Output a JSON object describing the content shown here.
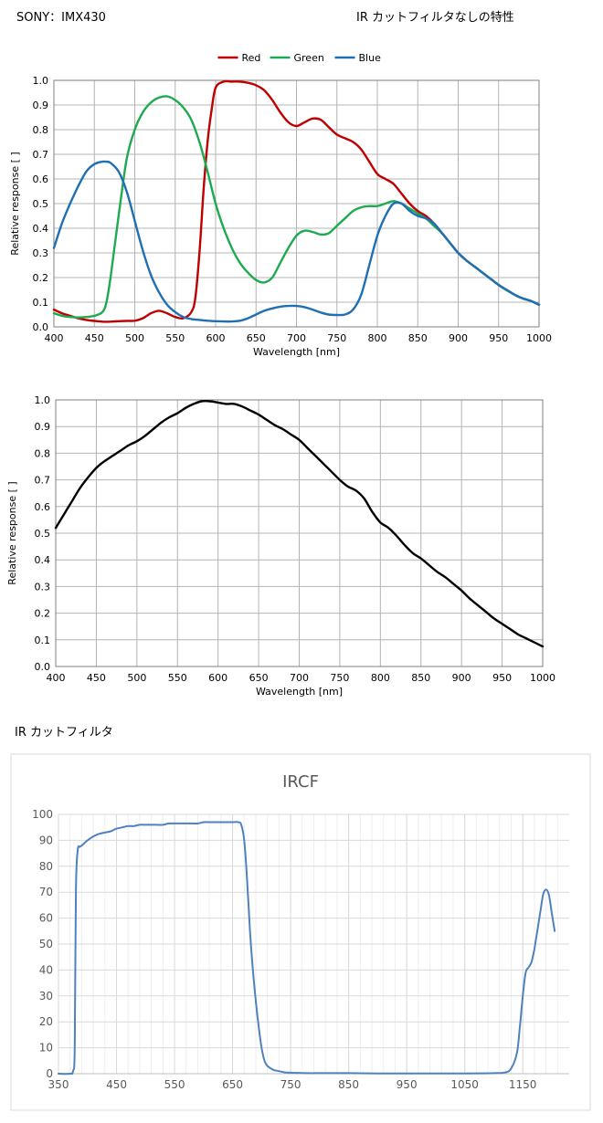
{
  "header": {
    "model": "SONY：IMX430",
    "title": "IR カットフィルタなしの特性",
    "ir_filter_label": "IR カットフィルタ"
  },
  "chart_data": [
    {
      "type": "line",
      "title": "",
      "xlabel": "Wavelength [nm]",
      "ylabel": "Relative response [ ]",
      "xlim": [
        400,
        1000
      ],
      "ylim": [
        0,
        1.0
      ],
      "xticks": [
        "400",
        "450",
        "500",
        "550",
        "600",
        "650",
        "700",
        "750",
        "800",
        "850",
        "900",
        "950",
        "1000"
      ],
      "yticks": [
        "0.0",
        "0.1",
        "0.2",
        "0.3",
        "0.4",
        "0.5",
        "0.6",
        "0.7",
        "0.8",
        "0.9",
        "1.0"
      ],
      "grid": true,
      "legend": "top-center",
      "series": [
        {
          "name": "Red",
          "color": "#c00000",
          "x": [
            400,
            410,
            420,
            430,
            440,
            450,
            460,
            470,
            480,
            490,
            500,
            510,
            520,
            530,
            540,
            550,
            560,
            570,
            575,
            580,
            585,
            590,
            595,
            600,
            610,
            620,
            630,
            640,
            650,
            660,
            670,
            680,
            690,
            700,
            710,
            720,
            730,
            740,
            750,
            760,
            770,
            780,
            790,
            800,
            810,
            820,
            830,
            840,
            850,
            860,
            870,
            880,
            890,
            900,
            910,
            920,
            930,
            940,
            950,
            960,
            970,
            980,
            990,
            1000
          ],
          "y": [
            0.07,
            0.055,
            0.045,
            0.035,
            0.028,
            0.024,
            0.021,
            0.021,
            0.023,
            0.024,
            0.025,
            0.035,
            0.055,
            0.065,
            0.055,
            0.04,
            0.035,
            0.06,
            0.12,
            0.3,
            0.55,
            0.75,
            0.88,
            0.97,
            0.995,
            0.995,
            0.995,
            0.99,
            0.98,
            0.96,
            0.92,
            0.87,
            0.83,
            0.815,
            0.83,
            0.845,
            0.84,
            0.81,
            0.78,
            0.765,
            0.75,
            0.72,
            0.67,
            0.62,
            0.6,
            0.58,
            0.54,
            0.5,
            0.47,
            0.45,
            0.42,
            0.38,
            0.34,
            0.3,
            0.27,
            0.245,
            0.22,
            0.195,
            0.17,
            0.15,
            0.13,
            0.115,
            0.105,
            0.09
          ]
        },
        {
          "name": "Green",
          "color": "#1eaa50",
          "x": [
            400,
            410,
            420,
            430,
            440,
            450,
            460,
            465,
            470,
            480,
            490,
            500,
            510,
            520,
            530,
            540,
            550,
            560,
            570,
            580,
            590,
            600,
            610,
            620,
            630,
            640,
            650,
            660,
            670,
            680,
            690,
            700,
            710,
            720,
            730,
            740,
            750,
            760,
            770,
            780,
            790,
            800,
            810,
            820,
            830,
            840,
            850,
            860,
            870,
            880,
            890,
            900,
            910,
            920,
            930,
            940,
            950,
            960,
            970,
            980,
            990,
            1000
          ],
          "y": [
            0.055,
            0.045,
            0.04,
            0.038,
            0.04,
            0.045,
            0.06,
            0.1,
            0.2,
            0.45,
            0.68,
            0.8,
            0.87,
            0.91,
            0.93,
            0.935,
            0.92,
            0.89,
            0.84,
            0.75,
            0.63,
            0.5,
            0.4,
            0.32,
            0.26,
            0.22,
            0.19,
            0.18,
            0.2,
            0.26,
            0.32,
            0.37,
            0.39,
            0.385,
            0.375,
            0.38,
            0.41,
            0.44,
            0.47,
            0.485,
            0.49,
            0.49,
            0.5,
            0.51,
            0.5,
            0.48,
            0.46,
            0.44,
            0.41,
            0.38,
            0.34,
            0.3,
            0.27,
            0.245,
            0.22,
            0.195,
            0.17,
            0.148,
            0.13,
            0.115,
            0.105,
            0.09
          ]
        },
        {
          "name": "Blue",
          "color": "#1f6fb4",
          "x": [
            400,
            410,
            420,
            430,
            440,
            450,
            460,
            465,
            470,
            480,
            490,
            500,
            510,
            520,
            530,
            540,
            550,
            560,
            570,
            580,
            590,
            600,
            610,
            620,
            630,
            640,
            650,
            660,
            670,
            680,
            690,
            700,
            710,
            720,
            730,
            740,
            750,
            760,
            770,
            780,
            790,
            800,
            810,
            820,
            830,
            840,
            850,
            860,
            870,
            880,
            890,
            900,
            910,
            920,
            930,
            940,
            950,
            960,
            970,
            980,
            990,
            1000
          ],
          "y": [
            0.32,
            0.42,
            0.5,
            0.57,
            0.63,
            0.66,
            0.67,
            0.67,
            0.665,
            0.63,
            0.55,
            0.43,
            0.31,
            0.21,
            0.14,
            0.09,
            0.06,
            0.04,
            0.032,
            0.028,
            0.025,
            0.023,
            0.022,
            0.022,
            0.025,
            0.035,
            0.05,
            0.065,
            0.075,
            0.082,
            0.085,
            0.085,
            0.08,
            0.07,
            0.058,
            0.05,
            0.048,
            0.05,
            0.07,
            0.13,
            0.25,
            0.37,
            0.45,
            0.5,
            0.5,
            0.47,
            0.45,
            0.44,
            0.42,
            0.38,
            0.34,
            0.3,
            0.27,
            0.245,
            0.22,
            0.195,
            0.17,
            0.15,
            0.13,
            0.115,
            0.105,
            0.09
          ]
        }
      ]
    },
    {
      "type": "line",
      "title": "",
      "xlabel": "Wavelength [nm]",
      "ylabel": "Relative response [ ]",
      "xlim": [
        400,
        1000
      ],
      "ylim": [
        0,
        1.0
      ],
      "xticks": [
        "400",
        "450",
        "500",
        "550",
        "600",
        "650",
        "700",
        "750",
        "800",
        "850",
        "900",
        "950",
        "1000"
      ],
      "yticks": [
        "0.0",
        "0.1",
        "0.2",
        "0.3",
        "0.4",
        "0.5",
        "0.6",
        "0.7",
        "0.8",
        "0.9",
        "1.0"
      ],
      "grid": true,
      "series": [
        {
          "name": "",
          "color": "#000000",
          "x": [
            400,
            410,
            420,
            430,
            440,
            450,
            460,
            470,
            480,
            490,
            500,
            510,
            520,
            530,
            540,
            550,
            560,
            570,
            580,
            590,
            600,
            610,
            620,
            630,
            640,
            650,
            660,
            670,
            680,
            690,
            700,
            710,
            720,
            730,
            740,
            750,
            760,
            770,
            780,
            790,
            800,
            810,
            820,
            830,
            840,
            850,
            860,
            870,
            880,
            890,
            900,
            910,
            920,
            930,
            940,
            950,
            960,
            970,
            980,
            990,
            1000
          ],
          "y": [
            0.52,
            0.57,
            0.62,
            0.67,
            0.71,
            0.745,
            0.77,
            0.79,
            0.81,
            0.83,
            0.845,
            0.865,
            0.89,
            0.915,
            0.935,
            0.95,
            0.97,
            0.985,
            0.995,
            0.995,
            0.99,
            0.985,
            0.985,
            0.975,
            0.96,
            0.945,
            0.925,
            0.905,
            0.89,
            0.87,
            0.85,
            0.82,
            0.79,
            0.76,
            0.73,
            0.7,
            0.675,
            0.66,
            0.63,
            0.58,
            0.54,
            0.52,
            0.49,
            0.455,
            0.425,
            0.405,
            0.38,
            0.355,
            0.335,
            0.31,
            0.285,
            0.255,
            0.23,
            0.205,
            0.18,
            0.16,
            0.14,
            0.12,
            0.105,
            0.09,
            0.075
          ]
        }
      ]
    },
    {
      "type": "line",
      "title": "IRCF",
      "xlabel": "",
      "ylabel": "",
      "xlim": [
        350,
        1230
      ],
      "ylim": [
        0,
        100
      ],
      "xticks": [
        "350",
        "450",
        "550",
        "650",
        "750",
        "850",
        "950",
        "1050",
        "1150"
      ],
      "yticks": [
        "0",
        "10",
        "20",
        "30",
        "40",
        "50",
        "60",
        "70",
        "80",
        "90",
        "100"
      ],
      "grid": true,
      "series": [
        {
          "name": "",
          "color": "#4f81bd",
          "x": [
            350,
            370,
            375,
            378,
            380,
            383,
            387,
            390,
            395,
            400,
            410,
            420,
            430,
            440,
            450,
            460,
            470,
            480,
            490,
            500,
            510,
            520,
            530,
            540,
            550,
            560,
            570,
            580,
            590,
            600,
            610,
            620,
            630,
            640,
            650,
            660,
            665,
            670,
            675,
            680,
            685,
            690,
            695,
            700,
            705,
            710,
            720,
            730,
            740,
            750,
            760,
            780,
            800,
            820,
            850,
            900,
            950,
            1000,
            1050,
            1100,
            1120,
            1130,
            1140,
            1145,
            1150,
            1155,
            1160,
            1165,
            1170,
            1175,
            1180,
            1185,
            1190,
            1195,
            1200,
            1205
          ],
          "y": [
            0,
            0,
            1,
            10,
            70,
            86,
            87.5,
            88,
            89,
            90,
            91.5,
            92.5,
            93,
            93.5,
            94.5,
            95,
            95.5,
            95.5,
            96,
            96,
            96,
            96,
            96,
            96.5,
            96.5,
            96.5,
            96.5,
            96.5,
            96.5,
            97,
            97,
            97,
            97,
            97,
            97,
            97,
            96,
            90,
            75,
            55,
            40,
            28,
            18,
            10,
            5,
            3,
            1.5,
            1,
            0.5,
            0.4,
            0.3,
            0.2,
            0.2,
            0.2,
            0.2,
            0.1,
            0.1,
            0.1,
            0.1,
            0.2,
            0.5,
            2,
            8,
            18,
            30,
            39,
            41,
            43,
            48,
            55,
            62,
            69,
            71,
            69,
            62,
            55
          ]
        }
      ]
    }
  ]
}
